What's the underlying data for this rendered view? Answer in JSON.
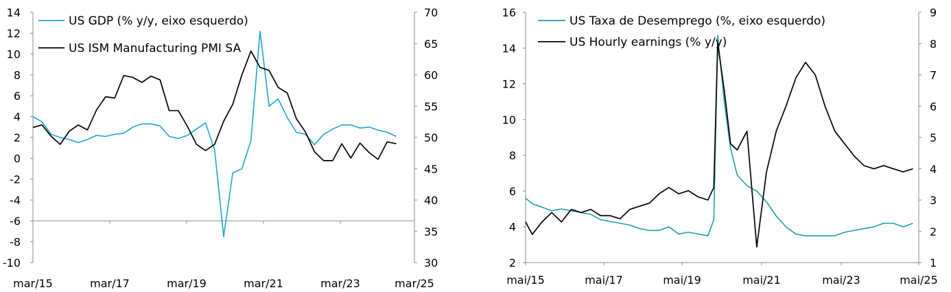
{
  "chart_data": [
    {
      "type": "line",
      "legend_position": "top-left",
      "grid": false,
      "x_tick_labels": [
        "mar/15",
        "mar/17",
        "mar/19",
        "mar/21",
        "mar/23",
        "mar/25"
      ],
      "x_range": [
        2015.0,
        2025.5
      ],
      "y_left": {
        "ticks": [
          "14",
          "12",
          "10",
          "8",
          "6",
          "4",
          "2",
          "0",
          "-2",
          "-4",
          "-6",
          "-8",
          "-10"
        ],
        "range": [
          -10,
          14
        ]
      },
      "y_right": {
        "ticks": [
          "70",
          "65",
          "60",
          "55",
          "50",
          "45",
          "40",
          "35",
          "30"
        ],
        "range": [
          30,
          70
        ]
      },
      "series": [
        {
          "name": "US GDP (% y/y, eixo esquerdo)",
          "axis": "left",
          "color": "#1aa4d6",
          "points": [
            [
              2015.0,
              4.0
            ],
            [
              2015.25,
              3.5
            ],
            [
              2015.5,
              2.3
            ],
            [
              2015.75,
              2.0
            ],
            [
              2016.0,
              1.8
            ],
            [
              2016.25,
              1.5
            ],
            [
              2016.5,
              1.8
            ],
            [
              2016.75,
              2.2
            ],
            [
              2017.0,
              2.1
            ],
            [
              2017.25,
              2.3
            ],
            [
              2017.5,
              2.4
            ],
            [
              2017.75,
              3.0
            ],
            [
              2018.0,
              3.3
            ],
            [
              2018.25,
              3.3
            ],
            [
              2018.5,
              3.1
            ],
            [
              2018.75,
              2.1
            ],
            [
              2019.0,
              1.9
            ],
            [
              2019.25,
              2.2
            ],
            [
              2019.5,
              2.8
            ],
            [
              2019.75,
              3.4
            ],
            [
              2020.0,
              0.8
            ],
            [
              2020.25,
              -7.5
            ],
            [
              2020.5,
              -1.4
            ],
            [
              2020.75,
              -1.0
            ],
            [
              2021.0,
              1.7
            ],
            [
              2021.25,
              12.2
            ],
            [
              2021.5,
              5.0
            ],
            [
              2021.75,
              5.7
            ],
            [
              2022.0,
              3.9
            ],
            [
              2022.25,
              2.5
            ],
            [
              2022.5,
              2.3
            ],
            [
              2022.75,
              1.3
            ],
            [
              2023.0,
              2.3
            ],
            [
              2023.25,
              2.8
            ],
            [
              2023.5,
              3.2
            ],
            [
              2023.75,
              3.2
            ],
            [
              2024.0,
              2.9
            ],
            [
              2024.25,
              3.0
            ],
            [
              2024.5,
              2.7
            ],
            [
              2024.75,
              2.5
            ],
            [
              2025.0,
              2.1
            ]
          ]
        },
        {
          "name": "US ISM Manufacturing PMI SA",
          "axis": "right",
          "color": "#000000",
          "points": [
            [
              2015.0,
              51.6
            ],
            [
              2015.25,
              52.0
            ],
            [
              2015.5,
              50.2
            ],
            [
              2015.75,
              48.9
            ],
            [
              2016.0,
              51.0
            ],
            [
              2016.25,
              52.0
            ],
            [
              2016.5,
              51.2
            ],
            [
              2016.75,
              54.4
            ],
            [
              2017.0,
              56.5
            ],
            [
              2017.25,
              56.3
            ],
            [
              2017.5,
              59.9
            ],
            [
              2017.75,
              59.6
            ],
            [
              2018.0,
              58.8
            ],
            [
              2018.25,
              59.8
            ],
            [
              2018.5,
              59.2
            ],
            [
              2018.75,
              54.3
            ],
            [
              2019.0,
              54.3
            ],
            [
              2019.25,
              51.8
            ],
            [
              2019.5,
              48.9
            ],
            [
              2019.75,
              47.9
            ],
            [
              2020.0,
              48.9
            ],
            [
              2020.25,
              52.6
            ],
            [
              2020.5,
              55.3
            ],
            [
              2020.75,
              60.0
            ],
            [
              2021.0,
              63.8
            ],
            [
              2021.25,
              61.2
            ],
            [
              2021.5,
              60.7
            ],
            [
              2021.75,
              58.0
            ],
            [
              2022.0,
              57.1
            ],
            [
              2022.25,
              53.0
            ],
            [
              2022.5,
              50.9
            ],
            [
              2022.75,
              47.7
            ],
            [
              2023.0,
              46.3
            ],
            [
              2023.25,
              46.3
            ],
            [
              2023.5,
              49.0
            ],
            [
              2023.75,
              46.7
            ],
            [
              2024.0,
              49.1
            ],
            [
              2024.25,
              47.6
            ],
            [
              2024.5,
              46.5
            ],
            [
              2024.75,
              49.3
            ],
            [
              2025.0,
              49.0
            ]
          ]
        }
      ]
    },
    {
      "type": "line",
      "legend_position": "top-left",
      "grid": false,
      "x_tick_labels": [
        "mai/15",
        "mai/17",
        "mai/19",
        "mai/21",
        "mai/23",
        "mai/25"
      ],
      "x_range": [
        2015.33,
        2025.4
      ],
      "y_left": {
        "ticks": [
          "16",
          "14",
          "12",
          "10",
          "8",
          "6",
          "4",
          "2"
        ],
        "range": [
          2,
          16
        ]
      },
      "y_right": {
        "ticks": [
          "9",
          "8",
          "7",
          "6",
          "5",
          "4",
          "3",
          "2",
          "1"
        ],
        "range": [
          1,
          9
        ]
      },
      "series": [
        {
          "name": "US Taxa de Desemprego (%, eixo esquerdo)",
          "axis": "left",
          "color": "#1a9fa6",
          "points": [
            [
              2015.33,
              5.6
            ],
            [
              2015.5,
              5.3
            ],
            [
              2015.75,
              5.1
            ],
            [
              2016.0,
              4.9
            ],
            [
              2016.25,
              5.0
            ],
            [
              2016.5,
              4.9
            ],
            [
              2016.75,
              4.8
            ],
            [
              2017.0,
              4.7
            ],
            [
              2017.25,
              4.4
            ],
            [
              2017.5,
              4.3
            ],
            [
              2017.75,
              4.2
            ],
            [
              2018.0,
              4.1
            ],
            [
              2018.25,
              3.9
            ],
            [
              2018.5,
              3.8
            ],
            [
              2018.75,
              3.8
            ],
            [
              2019.0,
              4.0
            ],
            [
              2019.25,
              3.6
            ],
            [
              2019.5,
              3.7
            ],
            [
              2019.75,
              3.6
            ],
            [
              2020.0,
              3.5
            ],
            [
              2020.15,
              4.4
            ],
            [
              2020.25,
              14.7
            ],
            [
              2020.42,
              11.0
            ],
            [
              2020.58,
              8.4
            ],
            [
              2020.75,
              6.9
            ],
            [
              2021.0,
              6.3
            ],
            [
              2021.25,
              6.0
            ],
            [
              2021.5,
              5.4
            ],
            [
              2021.75,
              4.6
            ],
            [
              2022.0,
              4.0
            ],
            [
              2022.25,
              3.6
            ],
            [
              2022.5,
              3.5
            ],
            [
              2022.75,
              3.5
            ],
            [
              2023.0,
              3.5
            ],
            [
              2023.25,
              3.5
            ],
            [
              2023.5,
              3.7
            ],
            [
              2023.75,
              3.8
            ],
            [
              2024.0,
              3.9
            ],
            [
              2024.25,
              4.0
            ],
            [
              2024.5,
              4.2
            ],
            [
              2024.75,
              4.2
            ],
            [
              2025.0,
              4.0
            ],
            [
              2025.25,
              4.2
            ]
          ]
        },
        {
          "name": "US Hourly earnings (% y/y)",
          "axis": "right",
          "color": "#000000",
          "points": [
            [
              2015.33,
              2.3
            ],
            [
              2015.5,
              1.9
            ],
            [
              2015.75,
              2.3
            ],
            [
              2016.0,
              2.6
            ],
            [
              2016.25,
              2.3
            ],
            [
              2016.5,
              2.7
            ],
            [
              2016.75,
              2.6
            ],
            [
              2017.0,
              2.7
            ],
            [
              2017.25,
              2.5
            ],
            [
              2017.5,
              2.5
            ],
            [
              2017.75,
              2.4
            ],
            [
              2018.0,
              2.7
            ],
            [
              2018.25,
              2.8
            ],
            [
              2018.5,
              2.9
            ],
            [
              2018.75,
              3.2
            ],
            [
              2019.0,
              3.4
            ],
            [
              2019.25,
              3.2
            ],
            [
              2019.5,
              3.3
            ],
            [
              2019.75,
              3.1
            ],
            [
              2020.0,
              3.0
            ],
            [
              2020.15,
              3.4
            ],
            [
              2020.25,
              8.0
            ],
            [
              2020.42,
              6.5
            ],
            [
              2020.58,
              4.8
            ],
            [
              2020.75,
              4.6
            ],
            [
              2021.0,
              5.2
            ],
            [
              2021.25,
              1.5
            ],
            [
              2021.5,
              3.9
            ],
            [
              2021.75,
              5.2
            ],
            [
              2022.0,
              6.0
            ],
            [
              2022.25,
              6.9
            ],
            [
              2022.5,
              7.4
            ],
            [
              2022.75,
              7.0
            ],
            [
              2023.0,
              6.0
            ],
            [
              2023.25,
              5.2
            ],
            [
              2023.5,
              4.8
            ],
            [
              2023.75,
              4.4
            ],
            [
              2024.0,
              4.1
            ],
            [
              2024.25,
              4.0
            ],
            [
              2024.5,
              4.1
            ],
            [
              2024.75,
              4.0
            ],
            [
              2025.0,
              3.9
            ],
            [
              2025.25,
              4.0
            ]
          ]
        }
      ]
    }
  ]
}
